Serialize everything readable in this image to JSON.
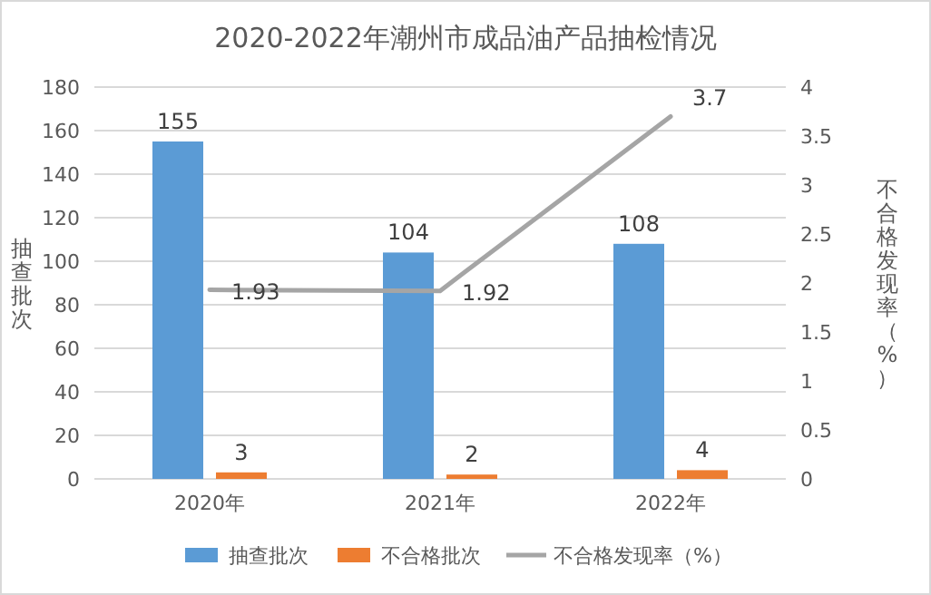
{
  "chart_data": {
    "type": "bar",
    "title": "2020-2022年潮州市成品油产品抽检情况",
    "categories": [
      "2020年",
      "2021年",
      "2022年"
    ],
    "series": [
      {
        "name": "抽查批次",
        "color": "#5b9bd5",
        "values": [
          155,
          104,
          108
        ]
      },
      {
        "name": "不合格批次",
        "color": "#ed7d31",
        "values": [
          3,
          2,
          4
        ]
      },
      {
        "name": "不合格发现率（%）",
        "type": "line",
        "axis": "y2",
        "color": "#a5a5a5",
        "values": [
          1.93,
          1.92,
          3.7
        ]
      }
    ],
    "ylabel": "抽查批次",
    "y2label": "不合格发现率（%）",
    "ylim": [
      0,
      180
    ],
    "yticks": [
      0,
      20,
      40,
      60,
      80,
      100,
      120,
      140,
      160,
      180
    ],
    "y2lim": [
      0,
      4
    ],
    "y2ticks": [
      0,
      0.5,
      1,
      1.5,
      2,
      2.5,
      3,
      3.5,
      4
    ],
    "grid": "y",
    "legend": "bottom",
    "data_labels": true
  }
}
